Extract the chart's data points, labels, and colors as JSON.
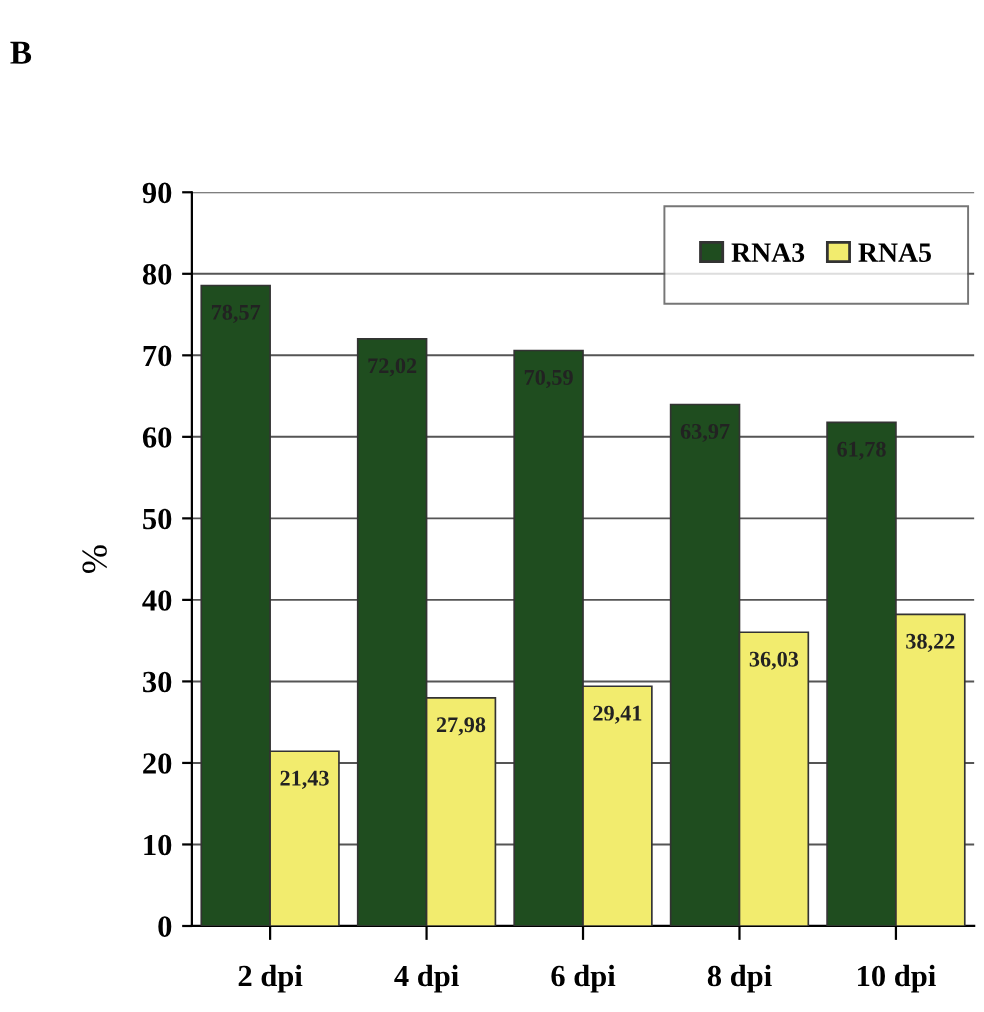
{
  "chart_data": {
    "type": "bar",
    "ylabel": "%",
    "annotations": [
      "B"
    ],
    "categories": [
      "2 dpi",
      "4 dpi",
      "6 dpi",
      "8 dpi",
      "10 dpi"
    ],
    "series": [
      {
        "name": "RNA3",
        "color": "#1f4d1f",
        "values": [
          78.57,
          72.02,
          70.59,
          63.97,
          61.78
        ],
        "value_labels": [
          "78,57",
          "72,02",
          "70,59",
          "63,97",
          "61,78"
        ]
      },
      {
        "name": "RNA5",
        "color": "#f2ec6e",
        "values": [
          21.43,
          27.98,
          29.41,
          36.03,
          38.22
        ],
        "value_labels": [
          "21,43",
          "27,98",
          "29,41",
          "36,03",
          "38,22"
        ]
      }
    ],
    "ylim": [
      0,
      90
    ],
    "yticks": [
      0,
      10,
      20,
      30,
      40,
      50,
      60,
      70,
      80,
      90
    ],
    "grid": "y",
    "legend": "top right"
  }
}
